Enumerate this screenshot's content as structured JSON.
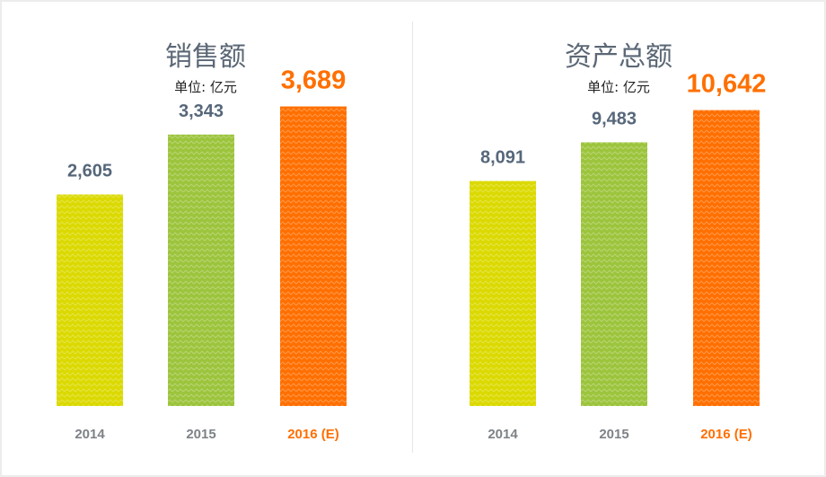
{
  "colors": {
    "yellow": "#dbd900",
    "green": "#9cc43c",
    "orange": "#ff6f00",
    "value_text": "#56677a",
    "axis_text": "#7d8287",
    "highlight_text": "#ff6f00"
  },
  "chart_data": [
    {
      "type": "bar",
      "title": "销售额",
      "subtitle": "单位: 亿元",
      "categories": [
        "2014",
        "2015",
        "2016 (E)"
      ],
      "values": [
        2605,
        3343,
        3689
      ],
      "value_labels": [
        "2,605",
        "3,343",
        "3,689"
      ],
      "highlight_index": 2,
      "bar_colors": [
        "#dbd900",
        "#9cc43c",
        "#ff6f00"
      ],
      "ylim": [
        0,
        5000
      ],
      "grid": false
    },
    {
      "type": "bar",
      "title": "资产总额",
      "subtitle": "单位: 亿元",
      "categories": [
        "2014",
        "2015",
        "2016 (E)"
      ],
      "values": [
        8091,
        9483,
        10642
      ],
      "value_labels": [
        "8,091",
        "9,483",
        "10,642"
      ],
      "highlight_index": 2,
      "bar_colors": [
        "#dbd900",
        "#9cc43c",
        "#ff6f00"
      ],
      "ylim": [
        0,
        14600
      ],
      "grid": false
    }
  ]
}
